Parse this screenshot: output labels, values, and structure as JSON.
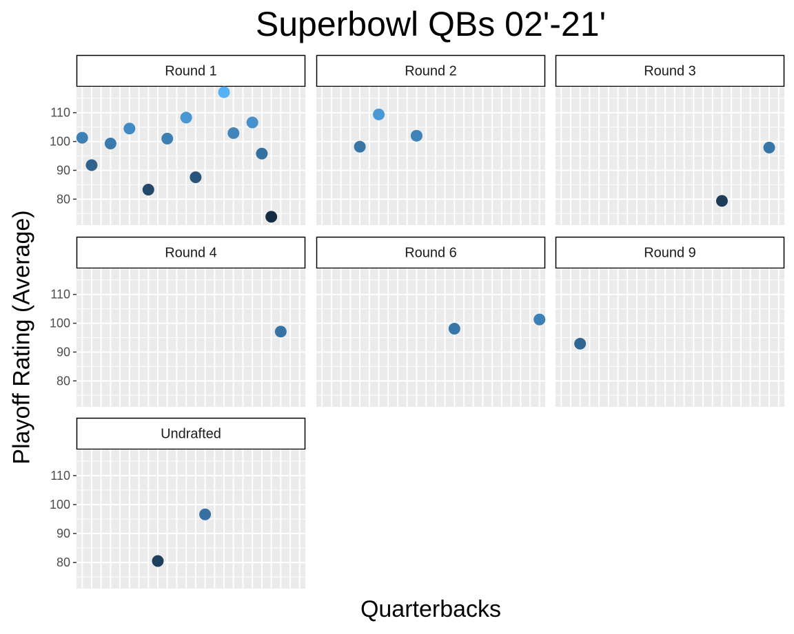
{
  "chart_data": {
    "type": "scatter",
    "title": "Superbowl QBs 02'-21'",
    "xlabel": "Quarterbacks",
    "ylabel": "Playoff Rating (Average)",
    "ylim": [
      71,
      119
    ],
    "y_ticks": [
      80,
      90,
      100,
      110
    ],
    "x_categories": 24,
    "grid": true,
    "color_scale": {
      "low": "#132B43",
      "high": "#56B1F7"
    },
    "panels": [
      {
        "label": "Round 1",
        "points": [
          {
            "x": 1,
            "y": 101.3
          },
          {
            "x": 2,
            "y": 91.8
          },
          {
            "x": 4,
            "y": 99.3
          },
          {
            "x": 6,
            "y": 104.5
          },
          {
            "x": 8,
            "y": 83.3
          },
          {
            "x": 10,
            "y": 101.0
          },
          {
            "x": 12,
            "y": 108.3
          },
          {
            "x": 13,
            "y": 87.6
          },
          {
            "x": 16,
            "y": 117.1
          },
          {
            "x": 17,
            "y": 102.9
          },
          {
            "x": 19,
            "y": 106.6
          },
          {
            "x": 20,
            "y": 95.8
          },
          {
            "x": 21,
            "y": 73.9
          }
        ]
      },
      {
        "label": "Round 2",
        "points": [
          {
            "x": 5,
            "y": 98.2
          },
          {
            "x": 7,
            "y": 109.4
          },
          {
            "x": 11,
            "y": 102.0
          }
        ]
      },
      {
        "label": "Round 3",
        "points": [
          {
            "x": 18,
            "y": 79.4
          },
          {
            "x": 23,
            "y": 97.9
          }
        ]
      },
      {
        "label": "Round 4",
        "points": [
          {
            "x": 22,
            "y": 97.1
          }
        ]
      },
      {
        "label": "Round 6",
        "points": [
          {
            "x": 15,
            "y": 98.1
          },
          {
            "x": 24,
            "y": 101.3
          }
        ]
      },
      {
        "label": "Round 9",
        "points": [
          {
            "x": 3,
            "y": 92.9
          }
        ]
      },
      {
        "label": "Undrafted",
        "points": [
          {
            "x": 9,
            "y": 80.5
          },
          {
            "x": 14,
            "y": 96.6
          }
        ]
      }
    ]
  }
}
